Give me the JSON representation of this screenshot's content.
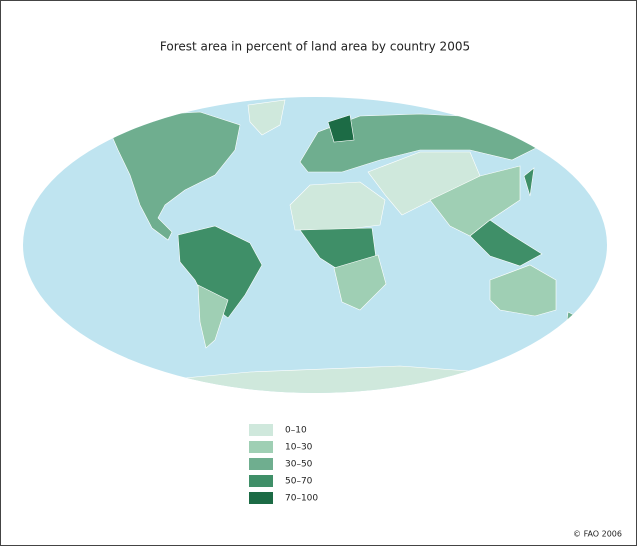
{
  "title": "Forest area in percent of land area by country 2005",
  "legend": {
    "items": [
      {
        "label": "0–10",
        "color": "#cfe8dc"
      },
      {
        "label": "10–30",
        "color": "#9fcfb4"
      },
      {
        "label": "30–50",
        "color": "#6fae8f"
      },
      {
        "label": "50–70",
        "color": "#3f8f68"
      },
      {
        "label": "70–100",
        "color": "#1c6b45"
      }
    ]
  },
  "credit": "© FAO 2006"
}
